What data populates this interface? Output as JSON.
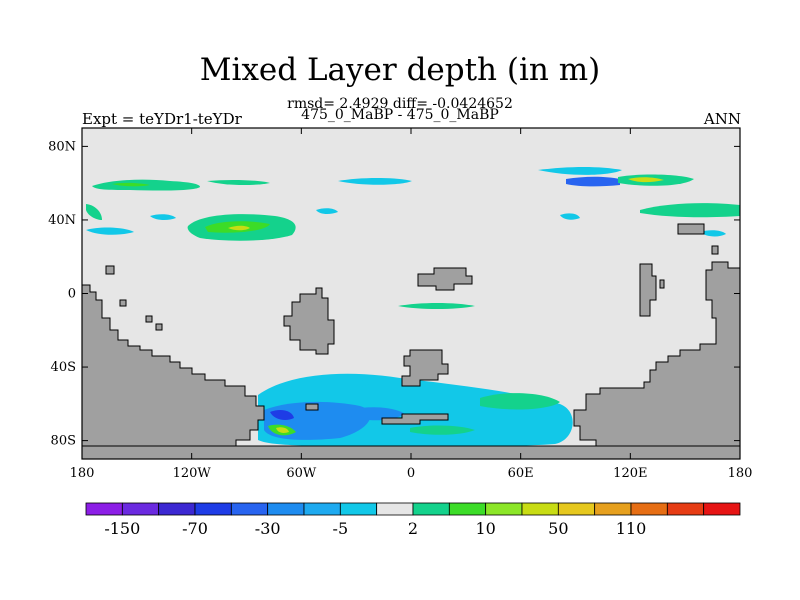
{
  "title": "Mixed Layer depth (in m)",
  "stats": "rmsd= 2.4929 diff= -0.0424652",
  "experiment": "Expt = teYDr1-teYDr",
  "subtitle": "475_0_MaBP - 475_0_MaBP",
  "season": "ANN",
  "map": {
    "projection": "cylindrical-equidistant",
    "lon_range": [
      -180,
      180
    ],
    "lat_range": [
      -90,
      90
    ],
    "ocean_color": "#e6e6e6",
    "land_color": "#a0a0a0",
    "x_ticks": [
      {
        "lon": -180,
        "label": "180"
      },
      {
        "lon": -120,
        "label": "120W"
      },
      {
        "lon": -60,
        "label": "60W"
      },
      {
        "lon": 0,
        "label": "0"
      },
      {
        "lon": 60,
        "label": "60E"
      },
      {
        "lon": 120,
        "label": "120E"
      },
      {
        "lon": 180,
        "label": "180"
      }
    ],
    "y_ticks": [
      {
        "lat": 80,
        "label": "80N"
      },
      {
        "lat": 40,
        "label": "40N"
      },
      {
        "lat": 0,
        "label": "0"
      },
      {
        "lat": -40,
        "label": "40S"
      },
      {
        "lat": -80,
        "label": "80S"
      }
    ]
  },
  "colorbar": {
    "colors": [
      "#8c1ee6",
      "#6b2ae0",
      "#3c28d2",
      "#1e3ce6",
      "#2864f0",
      "#1e8cf0",
      "#1eaaf0",
      "#12c8e8",
      "#e6e6e6",
      "#14d28c",
      "#3cdc28",
      "#8ce628",
      "#c8dc14",
      "#e6c81e",
      "#e6a01e",
      "#e66e14",
      "#e63c14",
      "#e61414"
    ],
    "labels": [
      {
        "index": 1,
        "text": "-150"
      },
      {
        "index": 3,
        "text": "-70"
      },
      {
        "index": 5,
        "text": "-30"
      },
      {
        "index": 7,
        "text": "-5"
      },
      {
        "index": 9,
        "text": "2"
      },
      {
        "index": 11,
        "text": "10"
      },
      {
        "index": 13,
        "text": "50"
      },
      {
        "index": 15,
        "text": "110"
      }
    ]
  }
}
